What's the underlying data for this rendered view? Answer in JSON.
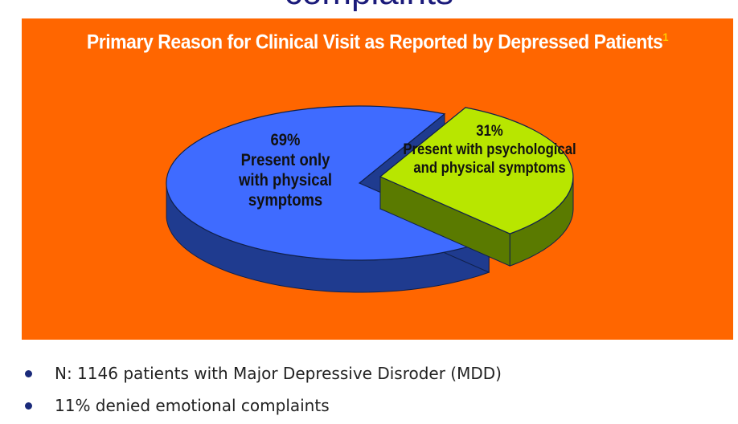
{
  "slide": {
    "title": "complaints"
  },
  "chart_data": {
    "type": "pie",
    "title": "Primary Reason for Clinical Visit as Reported by Depressed Patients",
    "title_superscript": "1",
    "slices": [
      {
        "label_pct": "69%",
        "label_lines": [
          "Present only",
          "with physical",
          "symptoms"
        ],
        "value": 69,
        "color": "#3f6bff",
        "side_color": "#1f3b8f"
      },
      {
        "label_pct": "31%",
        "label_lines": [
          "Present with psychological",
          "and physical symptoms"
        ],
        "value": 31,
        "color": "#b8e600",
        "side_color": "#5a7a00"
      }
    ],
    "background": "#ff6600",
    "title_color": "#ffffff",
    "exploded_slice": "31%",
    "style": "3d"
  },
  "bullets": [
    "N: 1146 patients with Major Depressive Disroder (MDD)",
    "11% denied emotional complaints"
  ]
}
